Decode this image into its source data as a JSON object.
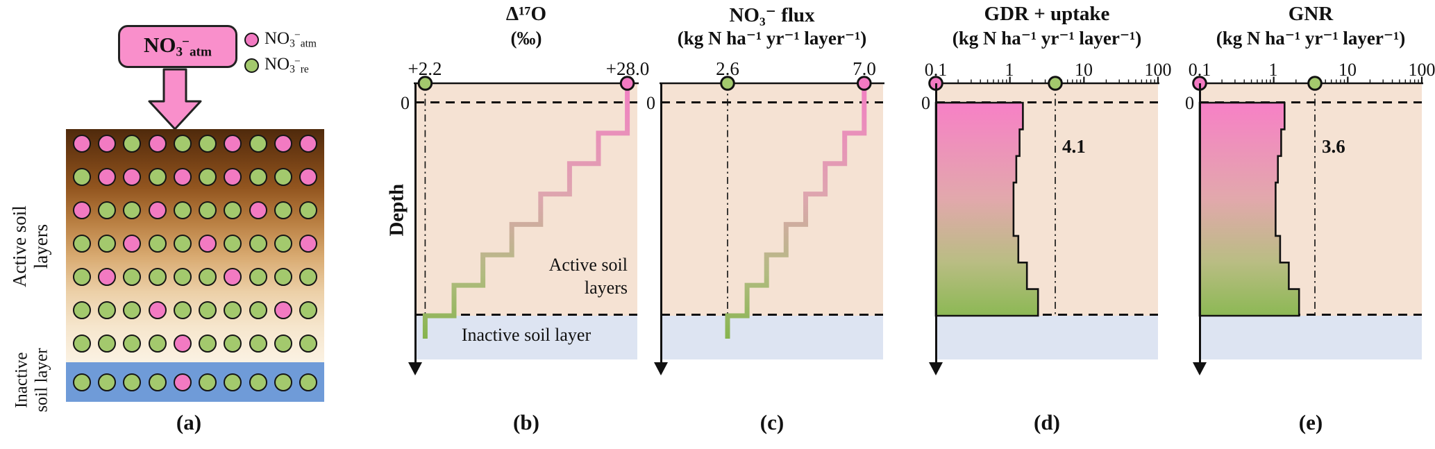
{
  "colors": {
    "pink": "#f27ac2",
    "green": "#a3c96d",
    "box_pink": "#f98fcb",
    "active_bg": "#f5e2d3",
    "inactive_bg": "#dde4f2",
    "soil_water_blue": "#6f9bd8"
  },
  "panel_a": {
    "label": "(a)",
    "box": {
      "base": "NO",
      "sub": "3",
      "sup": "−",
      "tag": "atm"
    },
    "legend": [
      {
        "base": "NO",
        "sub": "3",
        "sup": "−",
        "tag": "atm",
        "color": "#f27ac2"
      },
      {
        "base": "NO",
        "sub": "3",
        "sup": "−",
        "tag": "re",
        "color": "#a3c96d"
      }
    ],
    "active_label": [
      "Active soil",
      "layers"
    ],
    "inactive_label": [
      "Inactive",
      "soil layer"
    ],
    "soil_rows": [
      [
        "p",
        "p",
        "g",
        "p",
        "g",
        "g",
        "p",
        "g",
        "p",
        "p"
      ],
      [
        "g",
        "p",
        "p",
        "g",
        "p",
        "g",
        "p",
        "g",
        "g",
        "p"
      ],
      [
        "p",
        "g",
        "g",
        "p",
        "g",
        "g",
        "g",
        "p",
        "g",
        "g"
      ],
      [
        "g",
        "g",
        "p",
        "g",
        "g",
        "p",
        "g",
        "g",
        "g",
        "p"
      ],
      [
        "g",
        "p",
        "g",
        "g",
        "g",
        "g",
        "p",
        "g",
        "g",
        "g"
      ],
      [
        "g",
        "g",
        "g",
        "p",
        "g",
        "g",
        "g",
        "g",
        "p",
        "g"
      ],
      [
        "g",
        "g",
        "g",
        "g",
        "p",
        "g",
        "g",
        "g",
        "g",
        "g"
      ]
    ],
    "inactive_row": [
      "g",
      "g",
      "g",
      "g",
      "p",
      "g",
      "g",
      "g",
      "g",
      "g"
    ]
  },
  "panels": {
    "b": {
      "label": "(b)",
      "title_line1": "Δ¹⁷O",
      "title_line2": "(‰)",
      "zero_label": "0",
      "left_value": "+2.2",
      "right_value": "+28.0",
      "depth_axis_label": "Depth",
      "active_text_line1": "Active soil",
      "active_text_line2": "layers",
      "inactive_text": "Inactive soil layer"
    },
    "c": {
      "label": "(c)",
      "title_line1": "NO₃⁻ flux",
      "title_line2": "(kg N ha⁻¹ yr⁻¹ layer⁻¹)",
      "zero_label": "0",
      "left_value": "2.6",
      "right_value": "7.0"
    },
    "d": {
      "label": "(d)",
      "title_line1": "GDR + uptake",
      "title_line2": "(kg N ha⁻¹ yr⁻¹ layer⁻¹)",
      "zero_label": "0",
      "tick_labels": [
        "0.1",
        "1",
        "10",
        "100"
      ],
      "annotation": "4.1"
    },
    "e": {
      "label": "(e)",
      "title_line1": "GNR",
      "title_line2": "(kg N ha⁻¹ yr⁻¹ layer⁻¹)",
      "zero_label": "0",
      "tick_labels": [
        "0.1",
        "1",
        "10",
        "100"
      ],
      "annotation": "3.6"
    }
  },
  "chart_data": [
    {
      "panel": "b",
      "type": "line",
      "style": "stepped-depth-profile",
      "title": "Δ¹⁷O (‰)",
      "y_axis": "Depth (increasing downward)",
      "surface_value": 28.0,
      "deep_value": 2.2,
      "n_layers": 8,
      "note": "Δ¹⁷O decreases stepwise with depth from +28.0 (atmospheric nitrate) at the surface to +2.2 at the base of the active soil layers"
    },
    {
      "panel": "c",
      "type": "line",
      "style": "stepped-depth-profile",
      "title": "NO₃⁻ flux (kg N ha⁻¹ yr⁻¹ layer⁻¹)",
      "y_axis": "Depth",
      "surface_value": 7.0,
      "deep_value": 2.6,
      "n_layers": 8,
      "note": "Downward NO₃⁻ flux decreases stepwise with depth from 7.0 to 2.6"
    },
    {
      "panel": "d",
      "type": "area",
      "style": "stepped-depth-profile",
      "title": "GDR + uptake (kg N ha⁻¹ yr⁻¹ layer⁻¹)",
      "x_scale": "log",
      "x_range": [
        0.1,
        100
      ],
      "total": 4.1,
      "n_layers": 8,
      "layer_values_approx": [
        1.5,
        1.35,
        1.22,
        1.12,
        1.12,
        1.3,
        1.7,
        2.4
      ],
      "note": "Per-layer gross denitrification rate + uptake; dash-dot line marks column total 4.1"
    },
    {
      "panel": "e",
      "type": "area",
      "style": "stepped-depth-profile",
      "title": "GNR (kg N ha⁻¹ yr⁻¹ layer⁻¹)",
      "x_scale": "log",
      "x_range": [
        0.1,
        100
      ],
      "total": 3.6,
      "n_layers": 8,
      "layer_values_approx": [
        1.4,
        1.26,
        1.14,
        1.06,
        1.06,
        1.22,
        1.6,
        2.2
      ],
      "note": "Per-layer gross nitrification rate; dash-dot line marks column total 3.6"
    }
  ]
}
